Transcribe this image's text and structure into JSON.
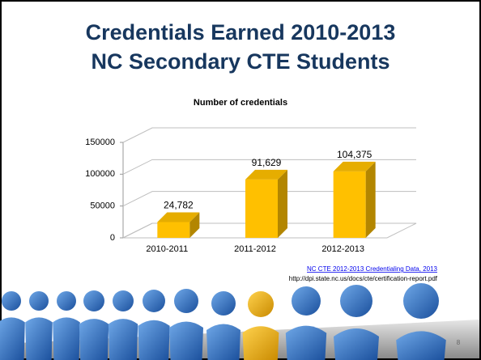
{
  "slide": {
    "title_line1": "Credentials Earned 2010-2013",
    "title_line2": "NC Secondary CTE Students",
    "source_link": "NC CTE 2012-2013 Credentialing Data, 2013",
    "source_url": "http://dpi.state.nc.us/docs/cte/certification-report.pdf",
    "page_number": "8"
  },
  "chart_data": {
    "type": "bar",
    "title": "Number of credentials",
    "categories": [
      "2010-2011",
      "2011-2012",
      "2012-2013"
    ],
    "values": [
      24782,
      91629,
      104375
    ],
    "value_labels": [
      "24,782",
      "91,629",
      "104,375"
    ],
    "color": "#ffc000",
    "ylim": [
      0,
      150000
    ],
    "yticks": [
      0,
      50000,
      100000,
      150000
    ],
    "grid": true
  }
}
